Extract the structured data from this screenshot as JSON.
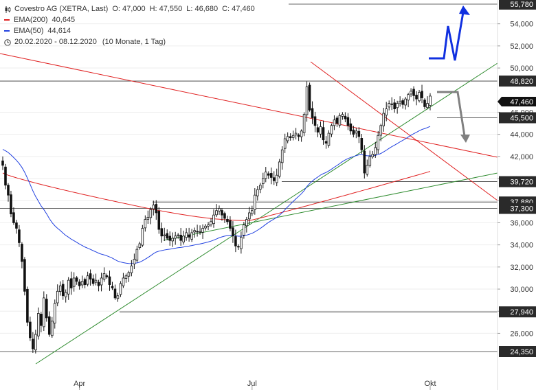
{
  "legend": {
    "title": "Covestro AG (XETRA, Last)",
    "ohlc": {
      "o_label": "O:",
      "o": "47,000",
      "h_label": "H:",
      "h": "47,550",
      "l_label": "L:",
      "l": "46,680",
      "c_label": "C:",
      "c": "47,460"
    },
    "ema200": {
      "label": "EMA(200)",
      "value": "40,645",
      "color": "#e02020"
    },
    "ema50": {
      "label": "EMA(50)",
      "value": "44,614",
      "color": "#2040e0"
    },
    "range": "20.02.2020 - 08.12.2020",
    "period": "(10 Monate, 1 Tag)"
  },
  "chart_data": {
    "type": "candlestick",
    "symbol": "Covestro AG",
    "ylim": [
      22500,
      56500
    ],
    "y_ticks": [
      26000,
      28000,
      30000,
      32000,
      34000,
      36000,
      38000,
      40000,
      42000,
      44000,
      46000,
      50000,
      52000,
      54000
    ],
    "y_tick_labels": [
      "26,000",
      "28,000",
      "30,000",
      "32,000",
      "34,000",
      "36,000",
      "38,000",
      "40,000",
      "42,000",
      "44,000",
      "46,000",
      "50,000",
      "52,000",
      "54,000"
    ],
    "x_labels": [
      "Apr",
      "Jul",
      "Okt"
    ],
    "x_label_index": [
      28,
      91,
      156
    ],
    "last_price": 47460,
    "last_price_label": "47,460",
    "levels": [
      {
        "value": 55780,
        "label": "55,780"
      },
      {
        "value": 48820,
        "label": "48,820"
      },
      {
        "value": 45500,
        "label": "45,500"
      },
      {
        "value": 39720,
        "label": "39,720"
      },
      {
        "value": 37880,
        "label": "37,880"
      },
      {
        "value": 37300,
        "label": "37,300"
      },
      {
        "value": 27940,
        "label": "27,940"
      },
      {
        "value": 24350,
        "label": "24,350"
      }
    ],
    "close": [
      41200,
      39400,
      38500,
      36800,
      36000,
      35500,
      34200,
      32500,
      29800,
      27000,
      25600,
      24600,
      25900,
      27800,
      26700,
      29200,
      27400,
      25900,
      27100,
      28700,
      29800,
      30300,
      29400,
      29700,
      30800,
      30100,
      31000,
      30700,
      30300,
      30700,
      30400,
      31200,
      30900,
      30500,
      30800,
      30300,
      31000,
      31400,
      31100,
      30400,
      30100,
      29200,
      29400,
      30500,
      31000,
      31200,
      31500,
      32100,
      32700,
      33600,
      34100,
      35500,
      36300,
      36500,
      37200,
      37600,
      36900,
      35400,
      34800,
      34900,
      34600,
      34400,
      34600,
      34800,
      34900,
      34400,
      34800,
      35100,
      34700,
      35100,
      35300,
      35200,
      35200,
      35500,
      35700,
      35800,
      36100,
      36700,
      37100,
      37300,
      36700,
      36400,
      36100,
      35500,
      34800,
      33900,
      33800,
      34700,
      35800,
      36300,
      36900,
      37100,
      38500,
      39000,
      39400,
      40000,
      40600,
      40300,
      40100,
      39800,
      40300,
      41500,
      42600,
      43600,
      43800,
      43700,
      43900,
      44100,
      43800,
      44300,
      45800,
      48300,
      46200,
      45500,
      44800,
      44200,
      44700,
      43500,
      43200,
      44100,
      44800,
      45300,
      45000,
      45700,
      45800,
      45400,
      44800,
      44300,
      44000,
      44300,
      43800,
      42600,
      40500,
      41200,
      42000,
      42200,
      42800,
      43900,
      44800,
      45900,
      46300,
      46800,
      46700,
      46300,
      46800,
      47000,
      46700,
      47200,
      47600,
      47900,
      47500,
      47200,
      47800,
      47300,
      46500,
      46800,
      47460
    ],
    "ema200": {
      "start": 40500,
      "end": 40645,
      "dip": 35900
    },
    "ema50": {
      "end": 44614,
      "low": 30700
    },
    "annotations": {
      "up_arrow": {
        "color": "#1030e0"
      },
      "down_arrow": {
        "color": "#808080"
      }
    }
  }
}
